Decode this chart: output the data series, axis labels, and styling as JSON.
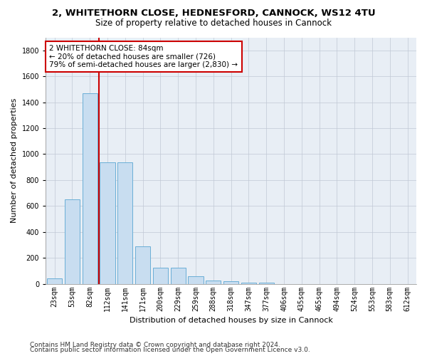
{
  "title1": "2, WHITETHORN CLOSE, HEDNESFORD, CANNOCK, WS12 4TU",
  "title2": "Size of property relative to detached houses in Cannock",
  "xlabel": "Distribution of detached houses by size in Cannock",
  "ylabel": "Number of detached properties",
  "categories": [
    "23sqm",
    "53sqm",
    "82sqm",
    "112sqm",
    "141sqm",
    "171sqm",
    "200sqm",
    "229sqm",
    "259sqm",
    "288sqm",
    "318sqm",
    "347sqm",
    "377sqm",
    "406sqm",
    "435sqm",
    "465sqm",
    "494sqm",
    "524sqm",
    "553sqm",
    "583sqm",
    "612sqm"
  ],
  "values": [
    40,
    650,
    1470,
    935,
    935,
    290,
    125,
    125,
    60,
    25,
    20,
    10,
    10,
    0,
    0,
    0,
    0,
    0,
    0,
    0,
    0
  ],
  "bar_color": "#c8ddf0",
  "bar_edge_color": "#6aaed6",
  "vline_color": "#cc0000",
  "annotation_text": "2 WHITETHORN CLOSE: 84sqm\n← 20% of detached houses are smaller (726)\n79% of semi-detached houses are larger (2,830) →",
  "annotation_box_color": "#ffffff",
  "annotation_edge_color": "#cc0000",
  "ylim": [
    0,
    1900
  ],
  "yticks": [
    0,
    200,
    400,
    600,
    800,
    1000,
    1200,
    1400,
    1600,
    1800
  ],
  "footer1": "Contains HM Land Registry data © Crown copyright and database right 2024.",
  "footer2": "Contains public sector information licensed under the Open Government Licence v3.0.",
  "bg_color": "#ffffff",
  "plot_bg_color": "#e8eef5",
  "grid_color": "#c0c8d4",
  "title1_fontsize": 9.5,
  "title2_fontsize": 8.5,
  "xlabel_fontsize": 8,
  "ylabel_fontsize": 8,
  "tick_fontsize": 7,
  "annot_fontsize": 7.5,
  "footer_fontsize": 6.5
}
